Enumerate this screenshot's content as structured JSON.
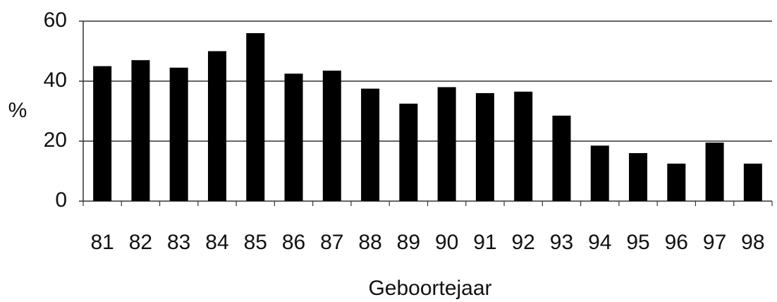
{
  "chart_data": {
    "type": "bar",
    "y_label": "%",
    "x_label": "Geboortejaar",
    "categories": [
      "81",
      "82",
      "83",
      "84",
      "85",
      "86",
      "87",
      "88",
      "89",
      "90",
      "91",
      "92",
      "93",
      "94",
      "95",
      "96",
      "97",
      "98"
    ],
    "values": [
      45,
      47,
      44.5,
      50,
      56,
      42.5,
      43.5,
      37.5,
      32.5,
      38,
      36,
      36.5,
      28.5,
      18.5,
      16,
      12.5,
      19.5,
      12.5
    ],
    "color": "#000000",
    "ylim": [
      0,
      60
    ],
    "yticks": [
      0,
      20,
      40,
      60
    ],
    "grid": true
  }
}
